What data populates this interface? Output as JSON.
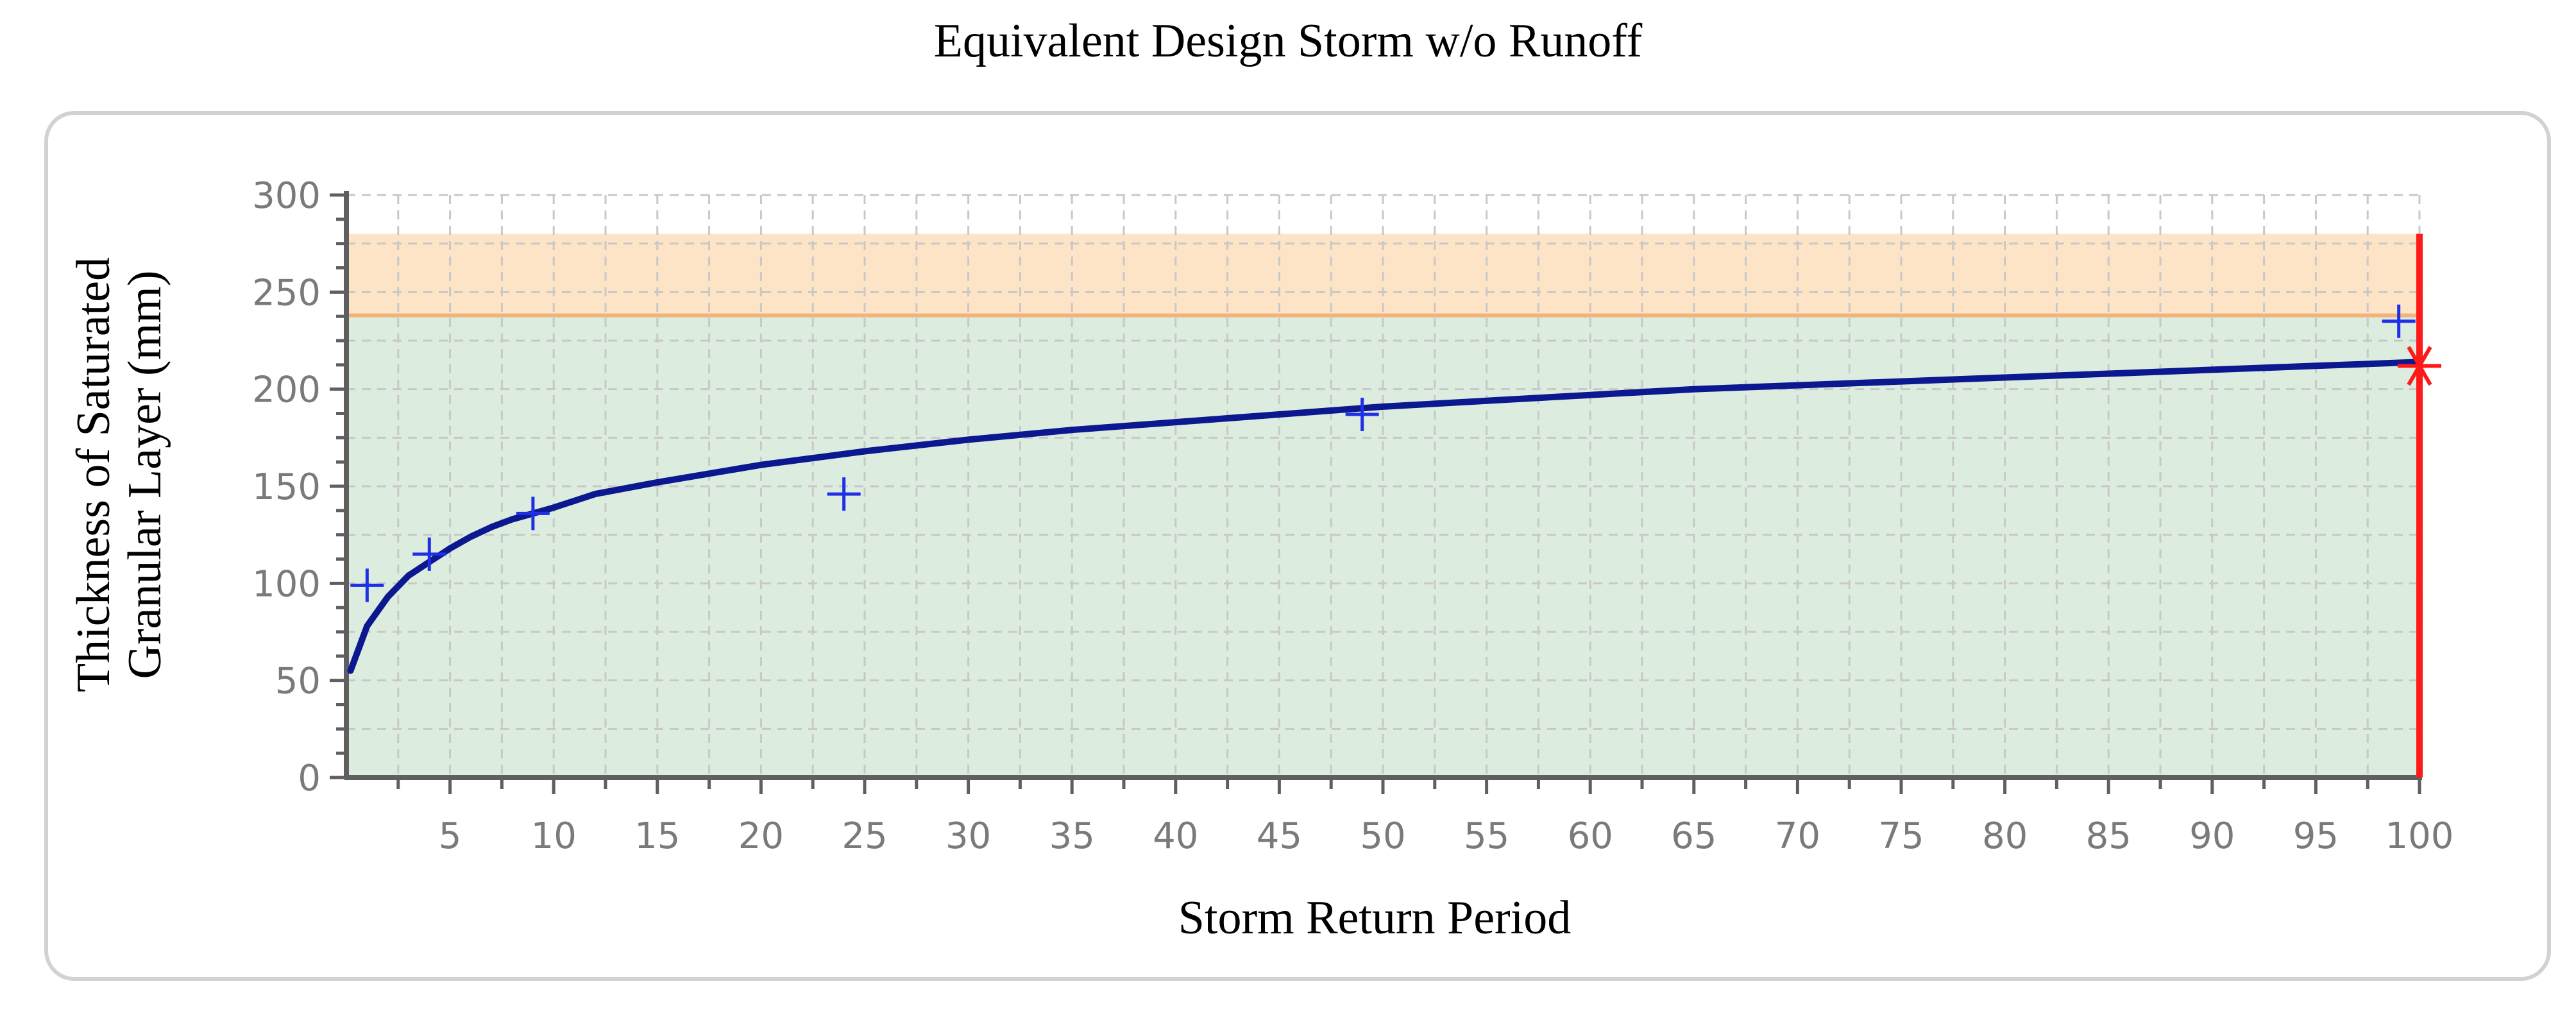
{
  "chart_data": {
    "type": "line",
    "title": "Equivalent Design Storm w/o Runoff",
    "xlabel": "Storm Return Period",
    "ylabel_lines": [
      "Thickness of Saturated",
      "Granular Layer (mm)"
    ],
    "xlim": [
      0,
      100
    ],
    "ylim": [
      0,
      300
    ],
    "x_ticks": [
      5,
      10,
      15,
      20,
      25,
      30,
      35,
      40,
      45,
      50,
      55,
      60,
      65,
      70,
      75,
      80,
      85,
      90,
      95,
      100
    ],
    "y_ticks": [
      0,
      50,
      100,
      150,
      200,
      250,
      300
    ],
    "grid": true,
    "bands": [
      {
        "from": 0,
        "to": 238,
        "color": "#dcecdf"
      },
      {
        "from": 238,
        "to": 280,
        "color": "#fde4c6"
      }
    ],
    "band_edge": {
      "y": 238,
      "color": "#f2b27a"
    },
    "series": [
      {
        "type": "line",
        "color": "#0b1890",
        "x": [
          0.2,
          1,
          2,
          3,
          4,
          5,
          6,
          7,
          8,
          9,
          10,
          12,
          15,
          20,
          25,
          30,
          35,
          40,
          45,
          50,
          55,
          60,
          65,
          70,
          75,
          80,
          85,
          90,
          95,
          100
        ],
        "y": [
          55,
          78,
          93,
          104,
          111,
          118,
          124,
          129,
          133,
          136,
          139,
          146,
          152,
          161,
          168,
          174,
          179,
          183,
          187,
          191,
          194,
          197,
          200,
          202,
          204,
          206,
          208,
          210,
          212,
          214
        ]
      },
      {
        "type": "scatter",
        "marker": "plus",
        "color": "#1f2fe6",
        "x": [
          1,
          4,
          9,
          24,
          49,
          99
        ],
        "y": [
          99,
          115,
          136,
          146,
          187,
          235
        ]
      }
    ],
    "reference_line": {
      "x": 100,
      "y_top": 280,
      "color": "#ff1a1a"
    },
    "highlight_point": {
      "x": 100,
      "y": 212,
      "marker": "asterisk",
      "color": "#ff1a1a"
    }
  }
}
